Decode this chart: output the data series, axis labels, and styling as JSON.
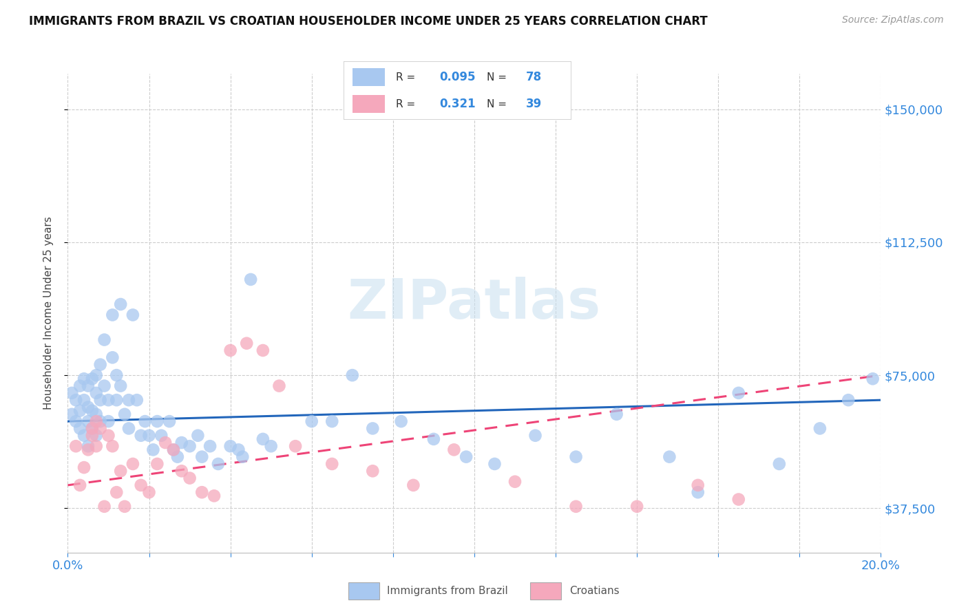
{
  "title": "IMMIGRANTS FROM BRAZIL VS CROATIAN HOUSEHOLDER INCOME UNDER 25 YEARS CORRELATION CHART",
  "source": "Source: ZipAtlas.com",
  "ylabel": "Householder Income Under 25 years",
  "xlim": [
    0.0,
    0.2
  ],
  "ylim": [
    25000,
    160000
  ],
  "xticks": [
    0.0,
    0.02,
    0.04,
    0.06,
    0.08,
    0.1,
    0.12,
    0.14,
    0.16,
    0.18,
    0.2
  ],
  "ytick_labels": [
    "$37,500",
    "$75,000",
    "$112,500",
    "$150,000"
  ],
  "ytick_values": [
    37500,
    75000,
    112500,
    150000
  ],
  "brazil_color": "#a8c8f0",
  "croatia_color": "#f5a8bc",
  "brazil_line_color": "#2266bb",
  "croatia_line_color": "#ee4477",
  "brazil_R": 0.095,
  "brazil_N": 78,
  "croatia_R": 0.321,
  "croatia_N": 39,
  "watermark": "ZIPatlas",
  "brazil_x": [
    0.001,
    0.001,
    0.002,
    0.002,
    0.003,
    0.003,
    0.003,
    0.004,
    0.004,
    0.004,
    0.005,
    0.005,
    0.005,
    0.005,
    0.006,
    0.006,
    0.006,
    0.007,
    0.007,
    0.007,
    0.007,
    0.008,
    0.008,
    0.008,
    0.009,
    0.009,
    0.01,
    0.01,
    0.011,
    0.011,
    0.012,
    0.012,
    0.013,
    0.013,
    0.014,
    0.015,
    0.015,
    0.016,
    0.017,
    0.018,
    0.019,
    0.02,
    0.021,
    0.022,
    0.023,
    0.025,
    0.026,
    0.027,
    0.028,
    0.03,
    0.032,
    0.033,
    0.035,
    0.037,
    0.04,
    0.042,
    0.043,
    0.045,
    0.048,
    0.05,
    0.06,
    0.065,
    0.07,
    0.075,
    0.082,
    0.09,
    0.098,
    0.105,
    0.115,
    0.125,
    0.135,
    0.148,
    0.155,
    0.165,
    0.175,
    0.185,
    0.192,
    0.198
  ],
  "brazil_y": [
    64000,
    70000,
    68000,
    62000,
    72000,
    65000,
    60000,
    68000,
    74000,
    58000,
    72000,
    66000,
    62000,
    55000,
    74000,
    65000,
    60000,
    75000,
    70000,
    64000,
    58000,
    78000,
    68000,
    62000,
    85000,
    72000,
    68000,
    62000,
    92000,
    80000,
    75000,
    68000,
    95000,
    72000,
    64000,
    68000,
    60000,
    92000,
    68000,
    58000,
    62000,
    58000,
    54000,
    62000,
    58000,
    62000,
    54000,
    52000,
    56000,
    55000,
    58000,
    52000,
    55000,
    50000,
    55000,
    54000,
    52000,
    102000,
    57000,
    55000,
    62000,
    62000,
    75000,
    60000,
    62000,
    57000,
    52000,
    50000,
    58000,
    52000,
    64000,
    52000,
    42000,
    70000,
    50000,
    60000,
    68000,
    74000
  ],
  "croatia_x": [
    0.002,
    0.003,
    0.004,
    0.005,
    0.006,
    0.006,
    0.007,
    0.007,
    0.008,
    0.009,
    0.01,
    0.011,
    0.012,
    0.013,
    0.014,
    0.016,
    0.018,
    0.02,
    0.022,
    0.024,
    0.026,
    0.028,
    0.03,
    0.033,
    0.036,
    0.04,
    0.044,
    0.048,
    0.052,
    0.056,
    0.065,
    0.075,
    0.085,
    0.095,
    0.11,
    0.125,
    0.14,
    0.155,
    0.165
  ],
  "croatia_y": [
    55000,
    44000,
    49000,
    54000,
    60000,
    58000,
    55000,
    62000,
    60000,
    38000,
    58000,
    55000,
    42000,
    48000,
    38000,
    50000,
    44000,
    42000,
    50000,
    56000,
    54000,
    48000,
    46000,
    42000,
    41000,
    82000,
    84000,
    82000,
    72000,
    55000,
    50000,
    48000,
    44000,
    54000,
    45000,
    38000,
    38000,
    44000,
    40000
  ]
}
